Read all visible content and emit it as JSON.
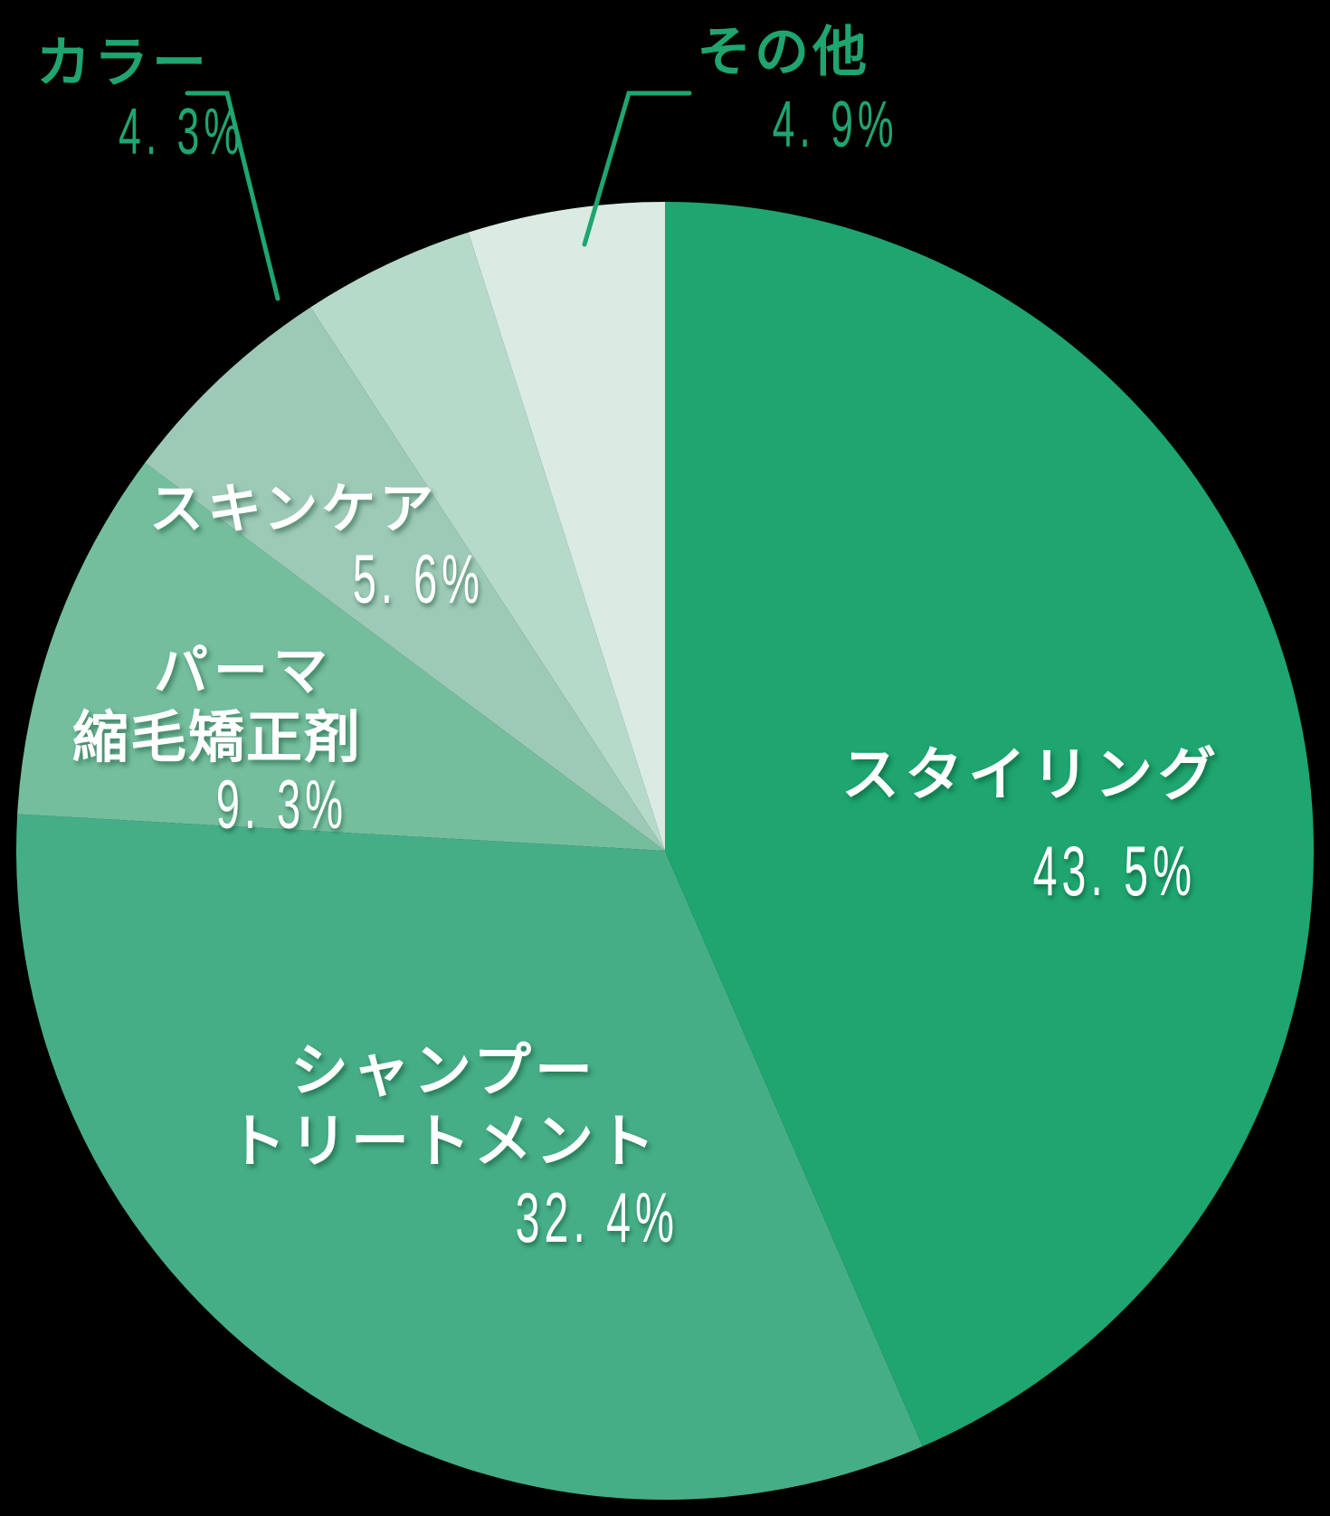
{
  "chart_data": {
    "type": "pie",
    "title": "",
    "start_angle_deg": 0,
    "direction": "clockwise",
    "slices": [
      {
        "label": "スタイリング",
        "value": 43.5,
        "value_label": "43.5%",
        "color": "#1ea570"
      },
      {
        "label": "シャンプー トリートメント",
        "value": 32.4,
        "value_label": "32.4%",
        "color": "#46ae86"
      },
      {
        "label": "パーマ 縮毛矯正剤",
        "value": 9.3,
        "value_label": "9.3%",
        "color": "#74be9e"
      },
      {
        "label": "スキンケア",
        "value": 5.6,
        "value_label": "5.6%",
        "color": "#9dcab6"
      },
      {
        "label": "カラー",
        "value": 4.3,
        "value_label": "4.3%",
        "color": "#b5dac9"
      },
      {
        "label": "その他",
        "value": 4.9,
        "value_label": "4.9%",
        "color": "#d9ebe3"
      }
    ],
    "legend": "none",
    "label_style": {
      "inside_color": "#ffffff",
      "outside_color": "#1fa56f",
      "leader_line_color": "#1fa56f"
    }
  },
  "labels": {
    "styling": {
      "line1": "スタイリング",
      "pct": "43. 5%"
    },
    "shampoo": {
      "line1": "シャンプー",
      "line2": "トリートメント",
      "pct": "32. 4%"
    },
    "perm": {
      "line1": "パーマ",
      "line2": "縮毛矯正剤",
      "pct": "9. 3%"
    },
    "skincare": {
      "line1": "スキンケア",
      "pct": "5. 6%"
    },
    "color": {
      "line1": "カラー",
      "pct": "4. 3%"
    },
    "other": {
      "line1": "その他",
      "pct": "4. 9%"
    }
  }
}
